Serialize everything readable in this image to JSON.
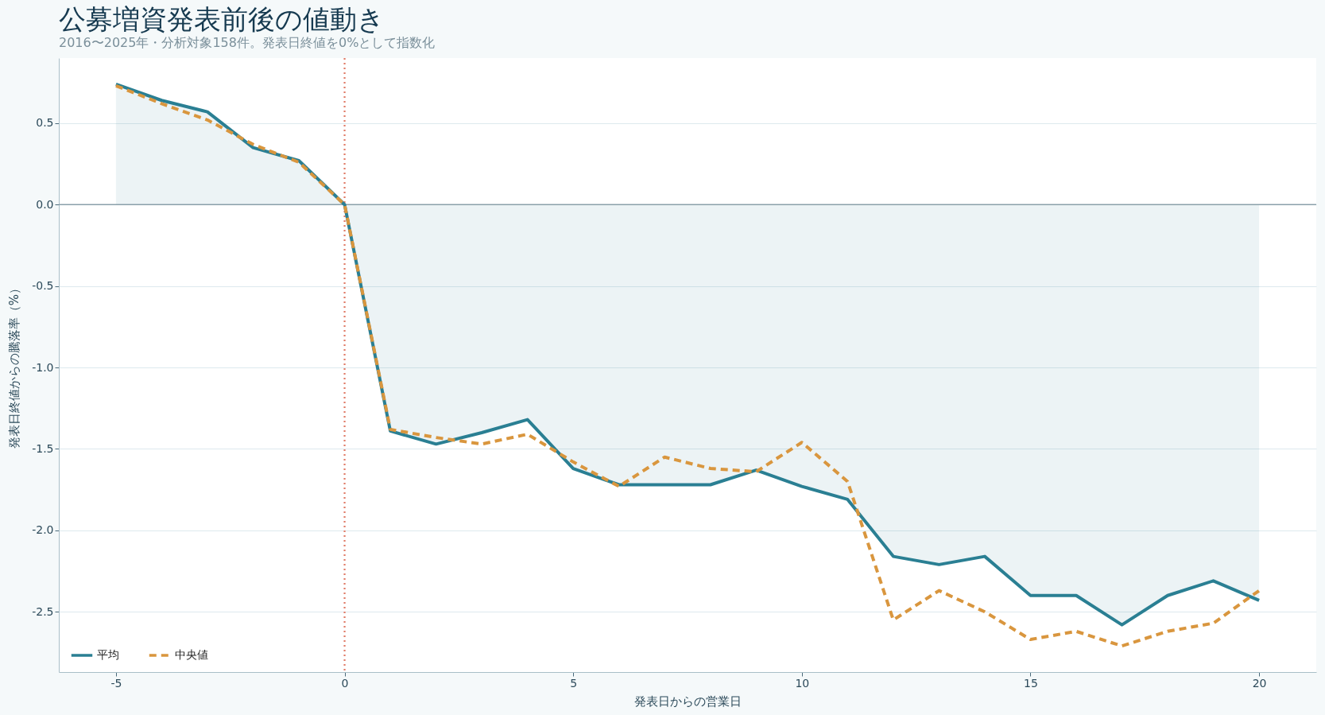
{
  "chart_data": {
    "type": "line",
    "title": "公募増資発表前後の値動き",
    "subtitle": "2016〜2025年・分析対象158件。発表日終値を0%として指数化",
    "xlabel": "発表日からの営業日",
    "ylabel": "発表日終値からの騰落率（%）",
    "x": [
      -5,
      -4,
      -3,
      -2,
      -1,
      0,
      1,
      2,
      3,
      4,
      5,
      6,
      7,
      8,
      9,
      10,
      11,
      12,
      13,
      14,
      15,
      16,
      17,
      18,
      19,
      20
    ],
    "series": [
      {
        "name": "平均",
        "type": "area",
        "color": "#2a7f93",
        "line_style": "solid",
        "values": [
          0.74,
          0.64,
          0.57,
          0.35,
          0.27,
          0,
          -1.39,
          -1.47,
          -1.4,
          -1.32,
          -1.62,
          -1.72,
          -1.72,
          -1.72,
          -1.63,
          -1.73,
          -1.81,
          -2.16,
          -2.21,
          -2.16,
          -2.4,
          -2.4,
          -2.58,
          -2.4,
          -2.31,
          -2.43
        ]
      },
      {
        "name": "中央値",
        "type": "line",
        "color": "#d9963e",
        "line_style": "dashed",
        "values": [
          0.73,
          0.62,
          0.52,
          0.37,
          0.26,
          0,
          -1.38,
          -1.43,
          -1.47,
          -1.41,
          -1.58,
          -1.73,
          -1.55,
          -1.62,
          -1.64,
          -1.46,
          -1.7,
          -2.55,
          -2.37,
          -2.5,
          -2.67,
          -2.62,
          -2.71,
          -2.62,
          -2.57,
          -2.37
        ]
      }
    ],
    "xlim": [
      -6.25,
      21.25
    ],
    "xticks": [
      -5,
      0,
      5,
      10,
      15,
      20
    ],
    "ylim": [
      -2.87,
      0.9
    ],
    "yticks": [
      {
        "value": -2.5,
        "label": "-2.5"
      },
      {
        "value": -2,
        "label": "-2.0"
      },
      {
        "value": -1.5,
        "label": "-1.5"
      },
      {
        "value": -1,
        "label": "-1.0"
      },
      {
        "value": -0.5,
        "label": "-0.5"
      },
      {
        "value": 0,
        "label": "0.0"
      },
      {
        "value": 0.5,
        "label": "0.5"
      }
    ],
    "ref_lines": [
      {
        "axis": "x",
        "value": 0,
        "color": "#e07b67",
        "line_style": "dotted"
      },
      {
        "axis": "y",
        "value": 0,
        "color": "#8aa0aa",
        "line_style": "solid"
      }
    ],
    "grid": "y",
    "legend": "bottom left"
  }
}
